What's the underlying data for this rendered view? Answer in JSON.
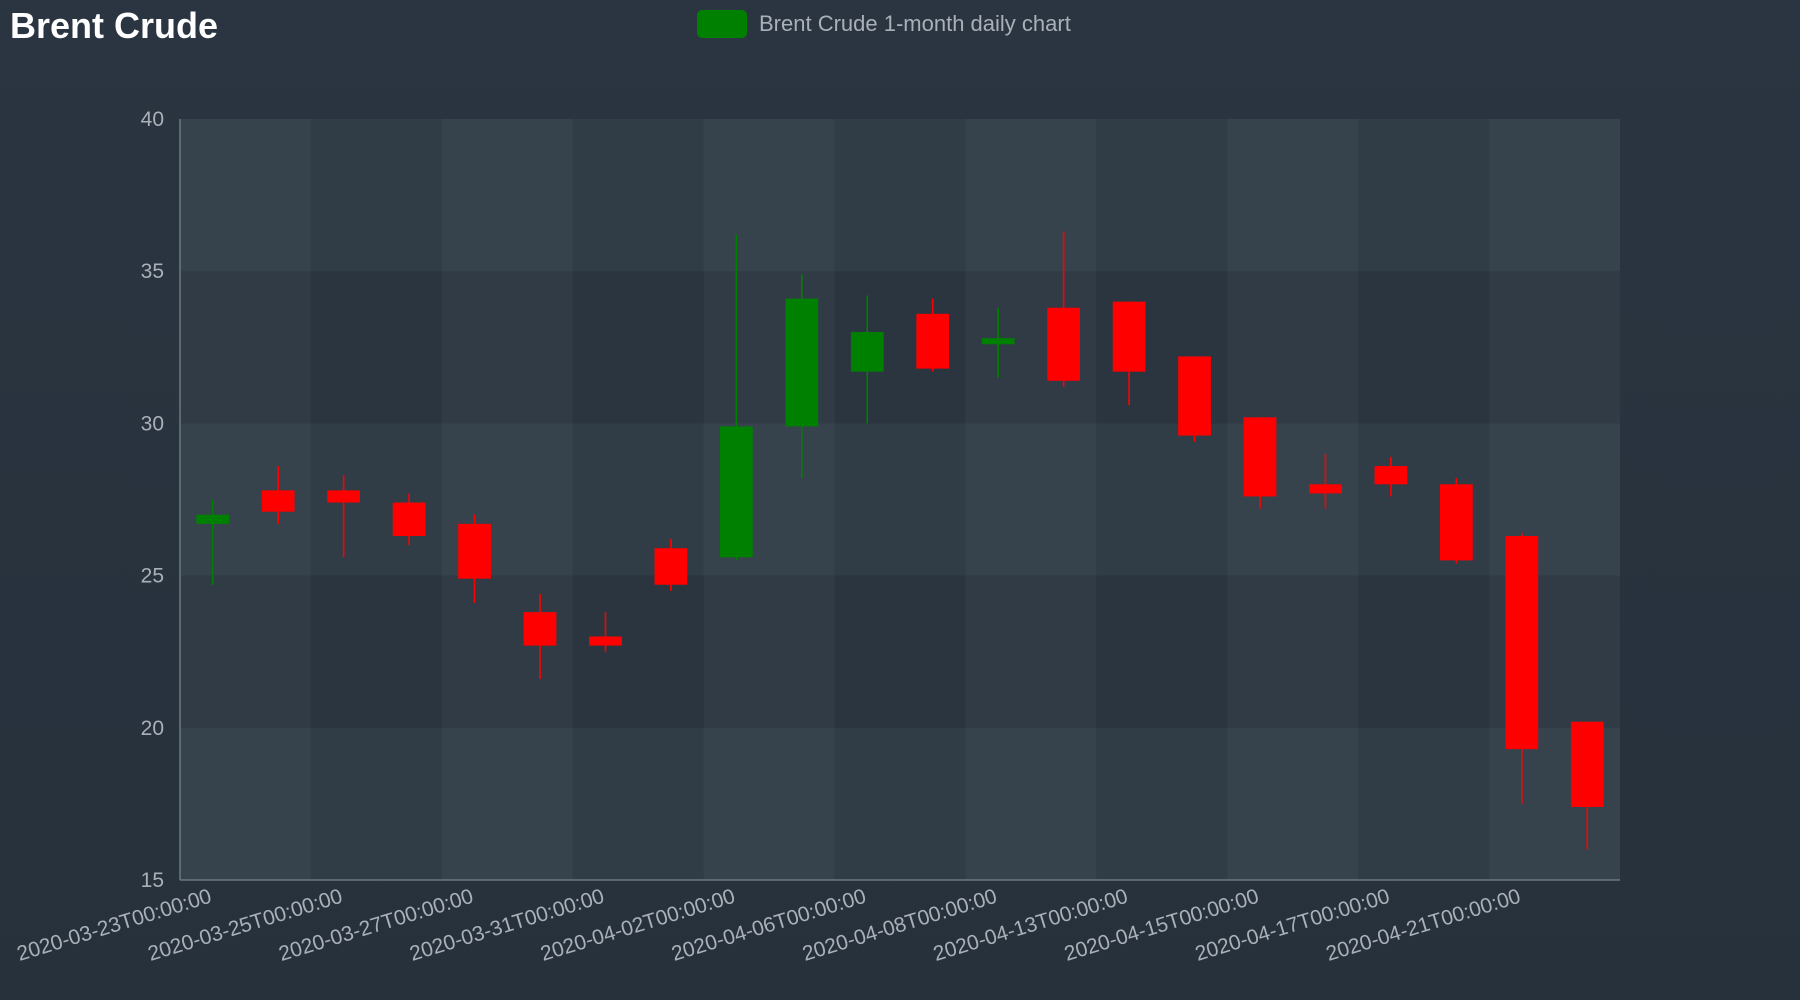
{
  "title": "Brent Crude",
  "legend": {
    "label": "Brent Crude 1-month daily chart",
    "color": "#008000"
  },
  "colors": {
    "up": "#008000",
    "down": "#ff0000"
  },
  "chart_data": {
    "type": "candlestick",
    "title": "Brent Crude",
    "xlabel": "",
    "ylabel": "",
    "ylim": [
      15,
      40
    ],
    "y_ticks": [
      15,
      20,
      25,
      30,
      35,
      40
    ],
    "x_tick_labels": [
      "2020-03-23T00:00:00",
      "2020-03-25T00:00:00",
      "2020-03-27T00:00:00",
      "2020-03-31T00:00:00",
      "2020-04-02T00:00:00",
      "2020-04-06T00:00:00",
      "2020-04-08T00:00:00",
      "2020-04-13T00:00:00",
      "2020-04-15T00:00:00",
      "2020-04-17T00:00:00",
      "2020-04-21T00:00:00"
    ],
    "legend_position": "top-center",
    "series": [
      {
        "name": "Brent Crude 1-month daily chart",
        "candles": [
          {
            "x": "2020-03-23T00:00:00",
            "open": 26.7,
            "high": 27.5,
            "low": 24.7,
            "close": 27.0
          },
          {
            "x": "2020-03-24T00:00:00",
            "open": 27.8,
            "high": 28.6,
            "low": 26.7,
            "close": 27.1
          },
          {
            "x": "2020-03-25T00:00:00",
            "open": 27.8,
            "high": 28.3,
            "low": 25.6,
            "close": 27.4
          },
          {
            "x": "2020-03-26T00:00:00",
            "open": 27.4,
            "high": 27.7,
            "low": 26.0,
            "close": 26.3
          },
          {
            "x": "2020-03-27T00:00:00",
            "open": 26.7,
            "high": 27.0,
            "low": 24.1,
            "close": 24.9
          },
          {
            "x": "2020-03-30T00:00:00",
            "open": 23.8,
            "high": 24.4,
            "low": 21.6,
            "close": 22.7
          },
          {
            "x": "2020-03-31T00:00:00",
            "open": 23.0,
            "high": 23.8,
            "low": 22.5,
            "close": 22.7
          },
          {
            "x": "2020-04-01T00:00:00",
            "open": 25.9,
            "high": 26.2,
            "low": 24.5,
            "close": 24.7
          },
          {
            "x": "2020-04-02T00:00:00",
            "open": 25.6,
            "high": 36.2,
            "low": 25.5,
            "close": 29.9
          },
          {
            "x": "2020-04-03T00:00:00",
            "open": 29.9,
            "high": 34.9,
            "low": 28.2,
            "close": 34.1
          },
          {
            "x": "2020-04-06T00:00:00",
            "open": 31.7,
            "high": 34.2,
            "low": 30.0,
            "close": 33.0
          },
          {
            "x": "2020-04-07T00:00:00",
            "open": 33.6,
            "high": 34.1,
            "low": 31.7,
            "close": 31.8
          },
          {
            "x": "2020-04-08T00:00:00",
            "open": 32.6,
            "high": 33.8,
            "low": 31.5,
            "close": 32.8
          },
          {
            "x": "2020-04-09T00:00:00",
            "open": 33.8,
            "high": 36.3,
            "low": 31.2,
            "close": 31.4
          },
          {
            "x": "2020-04-13T00:00:00",
            "open": 34.0,
            "high": 34.0,
            "low": 30.6,
            "close": 31.7
          },
          {
            "x": "2020-04-14T00:00:00",
            "open": 32.2,
            "high": 32.2,
            "low": 29.4,
            "close": 29.6
          },
          {
            "x": "2020-04-15T00:00:00",
            "open": 30.2,
            "high": 30.2,
            "low": 27.2,
            "close": 27.6
          },
          {
            "x": "2020-04-16T00:00:00",
            "open": 28.0,
            "high": 29.0,
            "low": 27.2,
            "close": 27.7
          },
          {
            "x": "2020-04-17T00:00:00",
            "open": 28.6,
            "high": 28.9,
            "low": 27.6,
            "close": 28.0
          },
          {
            "x": "2020-04-20T00:00:00",
            "open": 28.0,
            "high": 28.2,
            "low": 25.4,
            "close": 25.5
          },
          {
            "x": "2020-04-21T00:00:00",
            "open": 26.3,
            "high": 26.4,
            "low": 17.5,
            "close": 19.3
          },
          {
            "x": "2020-04-22T00:00:00",
            "open": 20.2,
            "high": 20.2,
            "low": 16.0,
            "close": 17.4
          }
        ]
      }
    ]
  }
}
